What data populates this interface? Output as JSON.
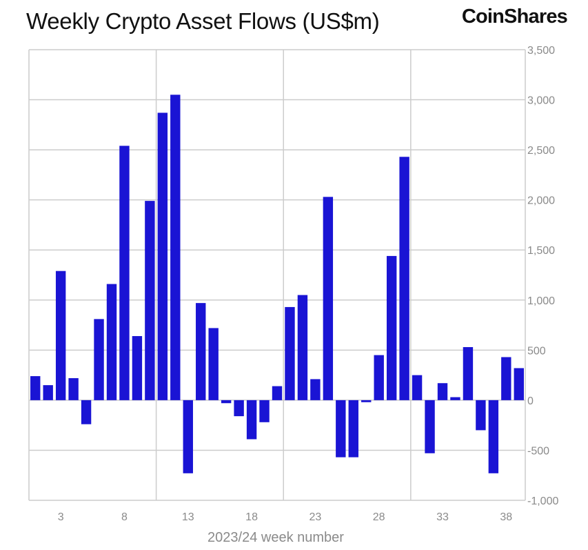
{
  "header": {
    "title": "Weekly Crypto Asset Flows (US$m)",
    "brand": "CoinShares"
  },
  "colors": {
    "bar": "#1a14d4",
    "grid": "#cccccc",
    "text": "#8a8a8a"
  },
  "chart_data": {
    "type": "bar",
    "title": "Weekly Crypto Asset Flows (US$m)",
    "xlabel": "2023/24 week number",
    "ylabel": "",
    "ylim": [
      -1000,
      3500
    ],
    "yticks": [
      3500,
      3000,
      2500,
      2000,
      1500,
      1000,
      500,
      0,
      -500,
      -1000
    ],
    "ytick_labels": [
      "3,500",
      "3,000",
      "2,500",
      "2,000",
      "1,500",
      "1,000",
      "500",
      "0",
      "-500",
      "-1,000"
    ],
    "xtick_labels": [
      "3",
      "8",
      "13",
      "18",
      "23",
      "28",
      "33",
      "38"
    ],
    "y_axis_position": "right",
    "grid": true,
    "legend": "none",
    "series": [
      {
        "values": [
          240,
          150,
          1290,
          220,
          -240,
          810,
          1160,
          2540,
          640,
          1990,
          2870,
          3050,
          -730,
          970,
          720,
          -30,
          -160,
          -390,
          -220,
          140,
          930,
          1050,
          210,
          2030,
          -570,
          -570,
          -20,
          450,
          1440,
          2430,
          250,
          -530,
          170,
          30,
          530,
          -300,
          -730,
          430,
          320
        ]
      }
    ]
  }
}
